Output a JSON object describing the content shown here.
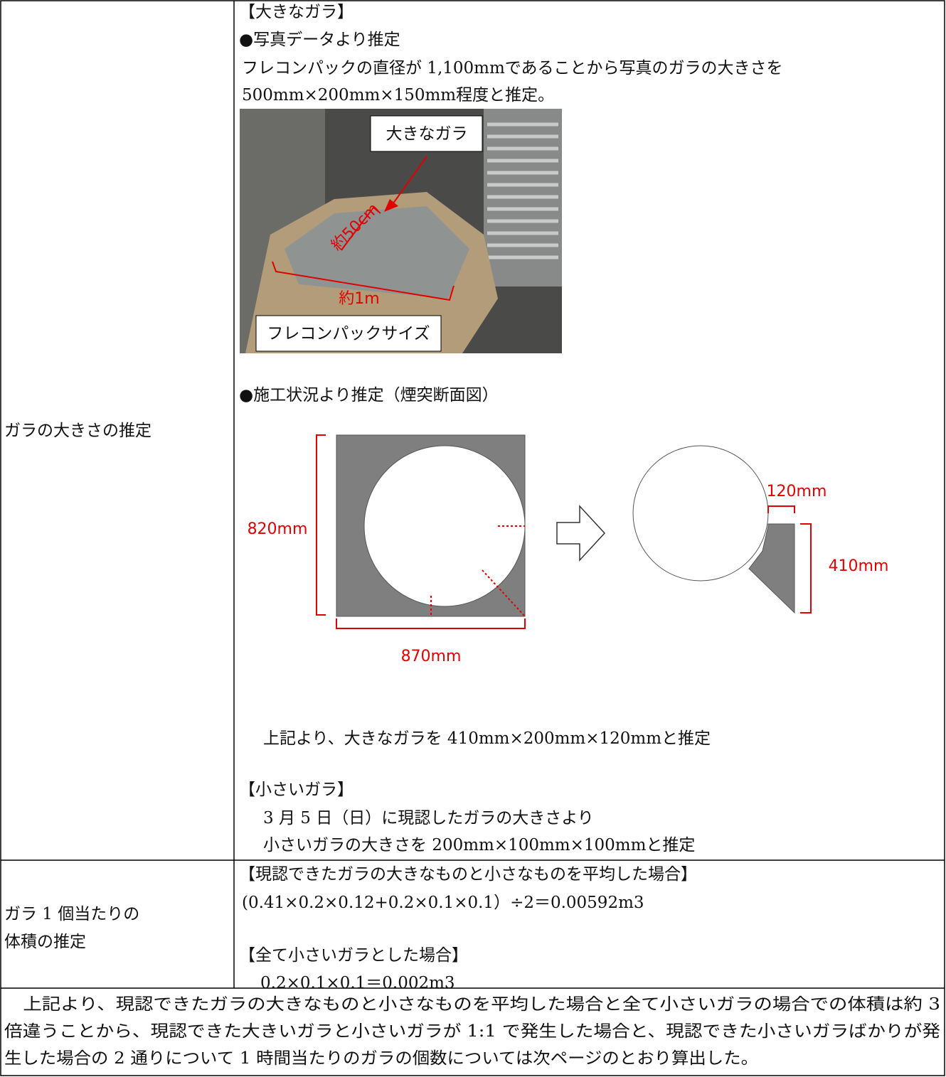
{
  "size_estimate": {
    "label": "ガラの大きさの推定",
    "large_heading": "【大きなガラ】",
    "photo_heading": "●写真データより推定",
    "photo_text": [
      "フレコンパックの直径が 1,100mmであることから写真のガラの大きさを",
      "500mm×200mm×150mm程度と推定。"
    ],
    "photo_labels": {
      "large": "大きなガラ",
      "length": "約50cm",
      "width": "約1m",
      "bag": "フレコンパックサイズ"
    },
    "section_heading": "●施工状況より推定（煙突断面図）",
    "dimensions": {
      "height": "820mm",
      "width": "870mm",
      "thickness": "120mm",
      "piece": "410mm"
    },
    "large_conclusion": "上記より、大きなガラを 410mm×200mm×120mmと推定",
    "small_heading": "【小さいガラ】",
    "small_text": [
      "3 月 5 日（日）に現認したガラの大きさより",
      "小さいガラの大きさを 200mm×100mm×100mmと推定"
    ]
  },
  "volume_estimate": {
    "label": [
      "ガラ 1 個当たりの",
      "体積の推定"
    ],
    "average_heading": "【現認できたガラの大きなものと小さなものを平均した場合】",
    "average_formula": "(0.41×0.2×0.12+0.2×0.1×0.1）÷2＝0.00592m3",
    "small_heading": "【全て小さいガラとした場合】",
    "small_formula": "0.2×0.1×0.1＝0.002m3"
  },
  "conclusion": [
    "　上記より、現認できたガラの大きなものと小さなものを平均した場合と全て小さいガラの場合での体積は約 3",
    "倍違うことから、現認できた大きいガラと小さいガラが 1:1 で発生した場合と、現認できた小さいガラばかりが発",
    "生した場合の 2 通りについて 1 時間当たりのガラの個数については次ページのとおり算出した。"
  ]
}
